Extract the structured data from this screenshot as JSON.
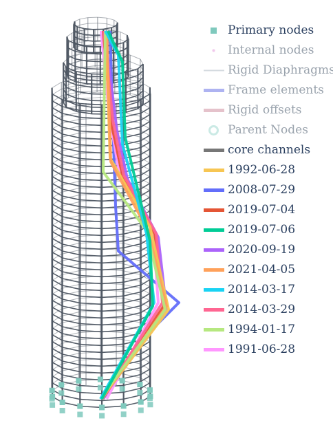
{
  "legend": {
    "items": [
      {
        "label": "Primary nodes",
        "kind": "square",
        "color": "#7fc9bd",
        "active": true
      },
      {
        "label": "Internal nodes",
        "kind": "dot",
        "color": "#e7a3e0",
        "active": false
      },
      {
        "label": "Rigid Diaphragms",
        "kind": "thinline",
        "color": "#d5dbe0",
        "active": false
      },
      {
        "label": "Frame elements",
        "kind": "line",
        "color": "#7a82e8",
        "active": false
      },
      {
        "label": "Rigid offsets",
        "kind": "line",
        "color": "#d49aaa",
        "active": false
      },
      {
        "label": "Parent Nodes",
        "kind": "ring",
        "color": "#a9dcd3",
        "active": false
      },
      {
        "label": "core channels",
        "kind": "line",
        "color": "#777777",
        "active": true
      },
      {
        "label": "1992-06-28",
        "kind": "line",
        "color": "#f7c653",
        "active": true
      },
      {
        "label": "2008-07-29",
        "kind": "line",
        "color": "#636efa",
        "active": true
      },
      {
        "label": "2019-07-04",
        "kind": "line",
        "color": "#e45535",
        "active": true
      },
      {
        "label": "2019-07-06",
        "kind": "line",
        "color": "#00cc96",
        "active": true
      },
      {
        "label": "2020-09-19",
        "kind": "line",
        "color": "#ab63fa",
        "active": true
      },
      {
        "label": "2021-04-05",
        "kind": "line",
        "color": "#ffa15a",
        "active": true
      },
      {
        "label": "2014-03-17",
        "kind": "line",
        "color": "#19d3f3",
        "active": true
      },
      {
        "label": "2014-03-29",
        "kind": "line",
        "color": "#ff6692",
        "active": true
      },
      {
        "label": "1994-01-17",
        "kind": "line",
        "color": "#b6e880",
        "active": true
      },
      {
        "label": "1991-06-28",
        "kind": "line",
        "color": "#ff97ff",
        "active": true
      }
    ]
  },
  "colors": {
    "frame": "#4d5662",
    "node": "#7fc9bd",
    "active_text": "#2a3f5f",
    "inactive_text": "#9aa3ad"
  }
}
